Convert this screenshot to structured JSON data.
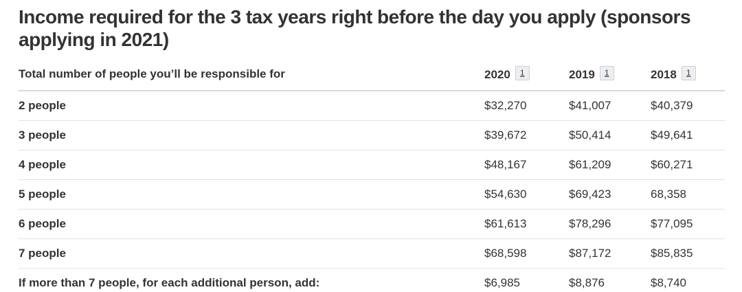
{
  "page": {
    "title": "Income required for the 3 tax years right before the day you apply (sponsors applying in 2021)"
  },
  "table": {
    "header": {
      "label": "Total number of people you’ll be responsible for",
      "years": [
        {
          "year": "2020",
          "footnote": "1"
        },
        {
          "year": "2019",
          "footnote": "1"
        },
        {
          "year": "2018",
          "footnote": "1"
        }
      ]
    },
    "rows": [
      {
        "label": "2 people",
        "values": [
          "$32,270",
          "$41,007",
          "$40,379"
        ]
      },
      {
        "label": "3 people",
        "values": [
          "$39,672",
          "$50,414",
          "$49,641"
        ]
      },
      {
        "label": "4 people",
        "values": [
          "$48,167",
          "$61,209",
          "$60,271"
        ]
      },
      {
        "label": "5 people",
        "values": [
          "$54,630",
          "$69,423",
          "68,358"
        ]
      },
      {
        "label": "6 people",
        "values": [
          "$61,613",
          "$78,296",
          "$77,095"
        ]
      },
      {
        "label": "7 people",
        "values": [
          "$68,598",
          "$87,172",
          "$85,835"
        ]
      },
      {
        "label": "If more than 7 people, for each additional person, add:",
        "values": [
          "$6,985",
          "$8,876",
          "$8,740"
        ]
      }
    ]
  },
  "colors": {
    "text": "#333333",
    "footnote_link": "#284162",
    "footnote_bg": "#eeeeee",
    "footnote_border": "#cfcfcf",
    "divider": "#e2e2e2",
    "header_divider": "#d9d9d9"
  }
}
